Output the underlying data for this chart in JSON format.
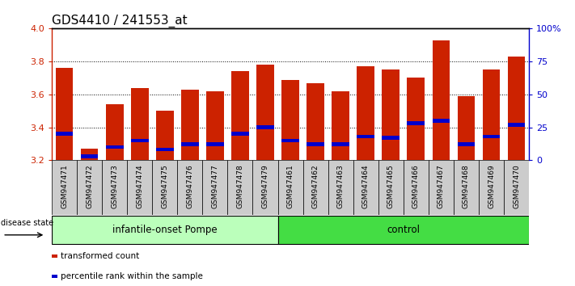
{
  "title": "GDS4410 / 241553_at",
  "samples": [
    "GSM947471",
    "GSM947472",
    "GSM947473",
    "GSM947474",
    "GSM947475",
    "GSM947476",
    "GSM947477",
    "GSM947478",
    "GSM947479",
    "GSM947461",
    "GSM947462",
    "GSM947463",
    "GSM947464",
    "GSM947465",
    "GSM947466",
    "GSM947467",
    "GSM947468",
    "GSM947469",
    "GSM947470"
  ],
  "transformed_counts": [
    3.76,
    3.27,
    3.54,
    3.64,
    3.5,
    3.63,
    3.62,
    3.74,
    3.78,
    3.69,
    3.67,
    3.62,
    3.77,
    3.75,
    3.7,
    3.93,
    3.59,
    3.75,
    3.83
  ],
  "percentile_ranks": [
    20,
    3,
    10,
    15,
    8,
    12,
    12,
    20,
    25,
    15,
    12,
    12,
    18,
    17,
    28,
    30,
    12,
    18,
    27
  ],
  "ymin": 3.2,
  "ymax": 4.0,
  "yticks": [
    3.2,
    3.4,
    3.6,
    3.8,
    4.0
  ],
  "right_yticks": [
    0,
    25,
    50,
    75,
    100
  ],
  "bar_color": "#cc2200",
  "percentile_color": "#0000cc",
  "group1_label": "infantile-onset Pompe",
  "group1_n": 9,
  "group1_color": "#bbffbb",
  "group2_label": "control",
  "group2_n": 10,
  "group2_color": "#44dd44",
  "disease_state_label": "disease state",
  "legend_items": [
    {
      "label": "transformed count",
      "color": "#cc2200"
    },
    {
      "label": "percentile rank within the sample",
      "color": "#0000cc"
    }
  ],
  "bar_width": 0.7,
  "cell_bg_color": "#cccccc",
  "plot_bg_color": "#ffffff",
  "title_fontsize": 11,
  "left_axis_color": "#cc2200",
  "right_axis_color": "#0000cc",
  "grid_color": "#000000",
  "grid_linestyle": ":"
}
